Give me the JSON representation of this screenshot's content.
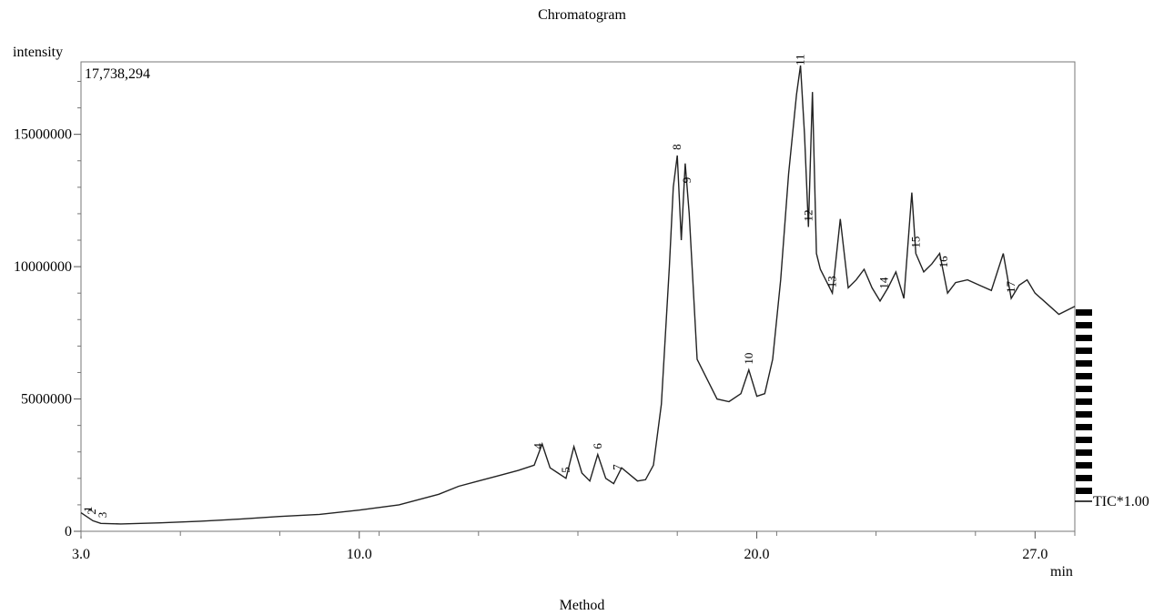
{
  "chart_data": {
    "type": "line",
    "title": "Chromatogram",
    "ylabel": "intensity",
    "xlabel": "min",
    "footer": "Method",
    "max_intensity_label": "17,738,294",
    "trace_label": "TIC*1.00",
    "xlim": [
      3.0,
      28.0
    ],
    "ylim": [
      0,
      17738294
    ],
    "x_ticks": [
      {
        "value": 3.0,
        "label": "3.0"
      },
      {
        "value": 10.0,
        "label": "10.0"
      },
      {
        "value": 20.0,
        "label": "20.0"
      },
      {
        "value": 27.0,
        "label": "27.0"
      }
    ],
    "y_ticks": [
      {
        "value": 0,
        "label": "0"
      },
      {
        "value": 5000000,
        "label": "5000000"
      },
      {
        "value": 10000000,
        "label": "10000000"
      },
      {
        "value": 15000000,
        "label": "15000000"
      }
    ],
    "series": [
      {
        "x": [
          3.0,
          3.3,
          3.5,
          4.0,
          5.0,
          6.0,
          7.0,
          8.0,
          9.0,
          10.0,
          11.0,
          12.0,
          12.5,
          13.0,
          13.5,
          14.0,
          14.4,
          14.6,
          14.8,
          15.0,
          15.2,
          15.4,
          15.6,
          15.8,
          16.0,
          16.2,
          16.4,
          16.6,
          17.0,
          17.2,
          17.4,
          17.6,
          17.8,
          17.9,
          18.0,
          18.1,
          18.2,
          18.3,
          18.5,
          18.8,
          19.0,
          19.3,
          19.6,
          19.8,
          20.0,
          20.2,
          20.4,
          20.6,
          20.8,
          21.0,
          21.1,
          21.2,
          21.3,
          21.4,
          21.5,
          21.6,
          21.7,
          21.9,
          22.1,
          22.3,
          22.5,
          22.7,
          22.9,
          23.1,
          23.3,
          23.5,
          23.7,
          23.9,
          24.0,
          24.2,
          24.4,
          24.6,
          24.8,
          25.0,
          25.3,
          25.6,
          25.9,
          26.2,
          26.4,
          26.6,
          26.8,
          27.0,
          27.3,
          27.6,
          28.0
        ],
        "y": [
          700000,
          400000,
          300000,
          280000,
          320000,
          380000,
          460000,
          560000,
          640000,
          800000,
          1000000,
          1400000,
          1700000,
          1900000,
          2100000,
          2300000,
          2500000,
          3300000,
          2400000,
          2200000,
          2000000,
          3200000,
          2200000,
          1900000,
          2900000,
          2000000,
          1800000,
          2400000,
          1900000,
          1950000,
          2500000,
          4800000,
          10000000,
          13000000,
          14200000,
          11000000,
          13900000,
          12000000,
          6500000,
          5600000,
          5000000,
          4900000,
          5200000,
          6100000,
          5100000,
          5200000,
          6500000,
          9500000,
          13500000,
          16500000,
          17600000,
          15000000,
          11500000,
          16600000,
          10500000,
          9900000,
          9600000,
          9000000,
          11800000,
          9200000,
          9500000,
          9900000,
          9200000,
          8700000,
          9200000,
          9800000,
          8800000,
          12800000,
          10500000,
          9800000,
          10100000,
          10500000,
          9000000,
          9400000,
          9500000,
          9300000,
          9100000,
          10500000,
          8800000,
          9300000,
          9500000,
          9000000,
          8600000,
          8200000,
          8500000
        ]
      }
    ],
    "peaks": [
      {
        "label": "1",
        "x": 3.18
      },
      {
        "label": "2",
        "x": 3.28
      },
      {
        "label": "3",
        "x": 3.55
      },
      {
        "label": "4",
        "x": 14.5
      },
      {
        "label": "5",
        "x": 15.2
      },
      {
        "label": "6",
        "x": 16.0
      },
      {
        "label": "7",
        "x": 16.5
      },
      {
        "label": "8",
        "x": 18.0
      },
      {
        "label": "9",
        "x": 18.25
      },
      {
        "label": "10",
        "x": 19.8
      },
      {
        "label": "11",
        "x": 21.1
      },
      {
        "label": "12",
        "x": 21.3
      },
      {
        "label": "13",
        "x": 21.9
      },
      {
        "label": "14",
        "x": 23.2
      },
      {
        "label": "15",
        "x": 24.0
      },
      {
        "label": "16",
        "x": 24.7
      },
      {
        "label": "17",
        "x": 26.4
      }
    ]
  }
}
